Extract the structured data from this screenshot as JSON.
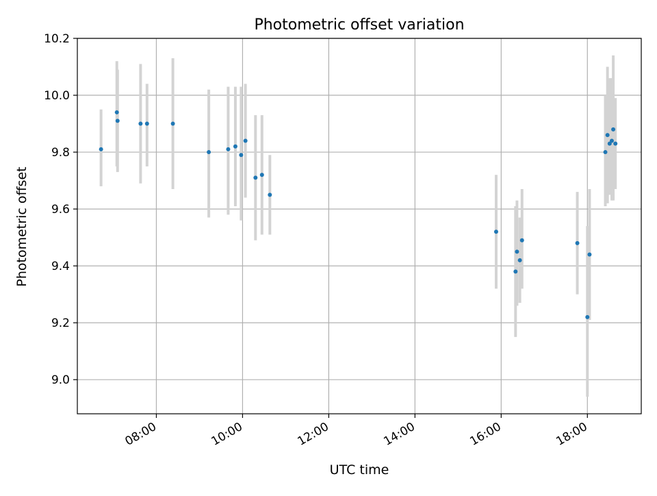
{
  "chart_data": {
    "type": "scatter",
    "title": "Photometric offset variation",
    "xlabel": "UTC time",
    "ylabel": "Photometric offset",
    "x_ticks": [
      "08:00",
      "10:00",
      "12:00",
      "14:00",
      "16:00",
      "18:00"
    ],
    "x_tick_times": [
      "08:00",
      "10:00",
      "12:00",
      "14:00",
      "16:00",
      "18:00"
    ],
    "y_ticks": [
      "9.0",
      "9.2",
      "9.4",
      "9.6",
      "9.8",
      "10.0",
      "10.2"
    ],
    "y_tick_values": [
      9.0,
      9.2,
      9.4,
      9.6,
      9.8,
      10.0,
      10.2
    ],
    "xlim": [
      "06:10",
      "19:15"
    ],
    "ylim": [
      8.88,
      10.2
    ],
    "grid": true,
    "point_color": "#1f77b4",
    "errorbar_color": "#d3d3d3",
    "points": [
      {
        "time": "06:43",
        "y": 9.81,
        "lo": 9.68,
        "hi": 9.95
      },
      {
        "time": "07:05",
        "y": 9.94,
        "lo": 9.75,
        "hi": 10.12
      },
      {
        "time": "07:06",
        "y": 9.91,
        "lo": 9.73,
        "hi": 10.09
      },
      {
        "time": "07:38",
        "y": 9.9,
        "lo": 9.69,
        "hi": 10.11
      },
      {
        "time": "07:47",
        "y": 9.9,
        "lo": 9.75,
        "hi": 10.04
      },
      {
        "time": "08:23",
        "y": 9.9,
        "lo": 9.67,
        "hi": 10.13
      },
      {
        "time": "09:13",
        "y": 9.8,
        "lo": 9.57,
        "hi": 10.02
      },
      {
        "time": "09:40",
        "y": 9.81,
        "lo": 9.58,
        "hi": 10.03
      },
      {
        "time": "09:50",
        "y": 9.82,
        "lo": 9.61,
        "hi": 10.03
      },
      {
        "time": "09:58",
        "y": 9.79,
        "lo": 9.56,
        "hi": 10.03
      },
      {
        "time": "10:04",
        "y": 9.84,
        "lo": 9.64,
        "hi": 10.04
      },
      {
        "time": "10:18",
        "y": 9.71,
        "lo": 9.49,
        "hi": 9.93
      },
      {
        "time": "10:27",
        "y": 9.72,
        "lo": 9.51,
        "hi": 9.93
      },
      {
        "time": "10:38",
        "y": 9.65,
        "lo": 9.51,
        "hi": 9.79
      },
      {
        "time": "15:53",
        "y": 9.52,
        "lo": 9.32,
        "hi": 9.72
      },
      {
        "time": "16:20",
        "y": 9.38,
        "lo": 9.15,
        "hi": 9.61
      },
      {
        "time": "16:22",
        "y": 9.45,
        "lo": 9.26,
        "hi": 9.63
      },
      {
        "time": "16:26",
        "y": 9.42,
        "lo": 9.27,
        "hi": 9.57
      },
      {
        "time": "16:29",
        "y": 9.49,
        "lo": 9.32,
        "hi": 9.67
      },
      {
        "time": "17:46",
        "y": 9.48,
        "lo": 9.3,
        "hi": 9.66
      },
      {
        "time": "18:00",
        "y": 9.22,
        "lo": 8.94,
        "hi": 9.54
      },
      {
        "time": "18:03",
        "y": 9.44,
        "lo": 9.21,
        "hi": 9.67
      },
      {
        "time": "18:25",
        "y": 9.8,
        "lo": 9.61,
        "hi": 10.0
      },
      {
        "time": "18:28",
        "y": 9.86,
        "lo": 9.62,
        "hi": 10.1
      },
      {
        "time": "18:31",
        "y": 9.83,
        "lo": 9.65,
        "hi": 10.06
      },
      {
        "time": "18:34",
        "y": 9.84,
        "lo": 9.63,
        "hi": 10.06
      },
      {
        "time": "18:36",
        "y": 9.88,
        "lo": 9.63,
        "hi": 10.14
      },
      {
        "time": "18:39",
        "y": 9.83,
        "lo": 9.67,
        "hi": 9.99
      }
    ]
  }
}
